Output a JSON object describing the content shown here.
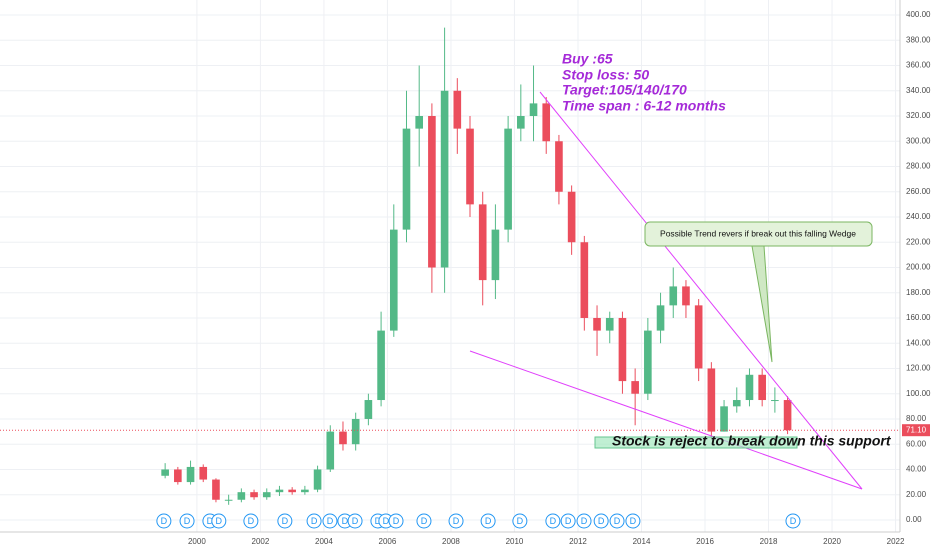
{
  "chart_data": {
    "type": "candlestick",
    "x": [
      1999,
      1999.4,
      1999.8,
      2000.2,
      2000.6,
      2001,
      2001.4,
      2001.8,
      2002.2,
      2002.6,
      2003,
      2003.4,
      2003.8,
      2004.2,
      2004.6,
      2005,
      2005.4,
      2005.8,
      2006.2,
      2006.6,
      2007,
      2007.4,
      2007.8,
      2008.2,
      2008.6,
      2009,
      2009.4,
      2009.8,
      2010.2,
      2010.6,
      2011,
      2011.4,
      2011.8,
      2012.2,
      2012.6,
      2013,
      2013.4,
      2013.8,
      2014.2,
      2014.6,
      2015,
      2015.4,
      2015.8,
      2016.2,
      2016.6,
      2017,
      2017.4,
      2017.8,
      2018.2,
      2018.6
    ],
    "open": [
      35,
      40,
      30,
      42,
      32,
      16,
      16,
      22,
      18,
      22,
      24,
      22,
      24,
      40,
      70,
      60,
      80,
      95,
      150,
      230,
      310,
      320,
      200,
      340,
      310,
      250,
      190,
      230,
      310,
      320,
      330,
      300,
      260,
      220,
      160,
      150,
      160,
      110,
      100,
      150,
      170,
      185,
      170,
      120,
      70,
      90,
      95,
      115,
      95,
      95
    ],
    "high": [
      45,
      42,
      47,
      44,
      33,
      20,
      25,
      24,
      25,
      27,
      26,
      27,
      43,
      75,
      78,
      85,
      100,
      165,
      250,
      340,
      360,
      330,
      390,
      350,
      320,
      260,
      250,
      320,
      345,
      360,
      335,
      305,
      265,
      225,
      170,
      165,
      165,
      120,
      160,
      180,
      200,
      190,
      175,
      125,
      95,
      105,
      120,
      120,
      105,
      98
    ],
    "low": [
      33,
      28,
      28,
      30,
      14,
      12,
      14,
      16,
      16,
      19,
      20,
      20,
      22,
      38,
      55,
      55,
      75,
      90,
      145,
      220,
      280,
      180,
      180,
      290,
      240,
      170,
      175,
      220,
      300,
      300,
      290,
      250,
      210,
      150,
      130,
      140,
      100,
      75,
      95,
      140,
      160,
      160,
      110,
      65,
      70,
      85,
      90,
      90,
      85,
      68
    ],
    "close": [
      40,
      30,
      42,
      32,
      16,
      16,
      22,
      18,
      22,
      24,
      22,
      24,
      40,
      70,
      60,
      80,
      95,
      150,
      230,
      310,
      320,
      200,
      340,
      310,
      250,
      190,
      230,
      310,
      320,
      330,
      300,
      260,
      220,
      160,
      150,
      160,
      110,
      100,
      150,
      170,
      185,
      170,
      120,
      70,
      90,
      95,
      115,
      95,
      95,
      71.1
    ],
    "up_color": "#53b987",
    "down_color": "#eb4d5c",
    "xlim": [
      1993.8,
      2022.14
    ],
    "ylim": [
      -14.3,
      411.9
    ],
    "xticks": [
      2000,
      2002,
      2004,
      2006,
      2008,
      2010,
      2012,
      2014,
      2016,
      2018,
      2020,
      2022
    ],
    "yticks": [
      {
        "value": 0,
        "label": "0.00"
      },
      {
        "value": 20,
        "label": "20.00"
      },
      {
        "value": 40,
        "label": "40.00"
      },
      {
        "value": 60,
        "label": "60.00"
      },
      {
        "value": 80,
        "label": "80.00"
      },
      {
        "value": 100,
        "label": "100.00"
      },
      {
        "value": 120,
        "label": "120.00"
      },
      {
        "value": 140,
        "label": "140.00"
      },
      {
        "value": 160,
        "label": "160.00"
      },
      {
        "value": 180,
        "label": "180.00"
      },
      {
        "value": 200,
        "label": "200.00"
      },
      {
        "value": 220,
        "label": "220.00"
      },
      {
        "value": 240,
        "label": "240.00"
      },
      {
        "value": 260,
        "label": "260.00"
      },
      {
        "value": 280,
        "label": "280.00"
      },
      {
        "value": 300,
        "label": "300.00"
      },
      {
        "value": 320,
        "label": "320.00"
      },
      {
        "value": 340,
        "label": "340.00"
      },
      {
        "value": 360,
        "label": "360.00"
      },
      {
        "value": 380,
        "label": "380.00"
      },
      {
        "value": 400,
        "label": "400.00"
      }
    ],
    "grid": true,
    "last_price": {
      "value": 71.1,
      "label": "71.10"
    },
    "dividends": {
      "label": "D",
      "x": [
        1998.96,
        1999.69,
        2000.41,
        2000.69,
        2001.7,
        2002.77,
        2003.69,
        2004.19,
        2004.66,
        2004.98,
        2005.7,
        2005.95,
        2006.27,
        2007.15,
        2008.16,
        2009.17,
        2010.17,
        2011.21,
        2011.69,
        2012.19,
        2012.73,
        2013.23,
        2013.73,
        2018.77
      ]
    },
    "annotations": {
      "plan": [
        "Buy :65",
        "Stop loss: 50",
        "Target:105/140/170",
        "Time span : 6-12 months"
      ],
      "callout": "Possible Trend revers if break out this falling Wedge",
      "support": "Stock is reject to break down this support"
    }
  }
}
